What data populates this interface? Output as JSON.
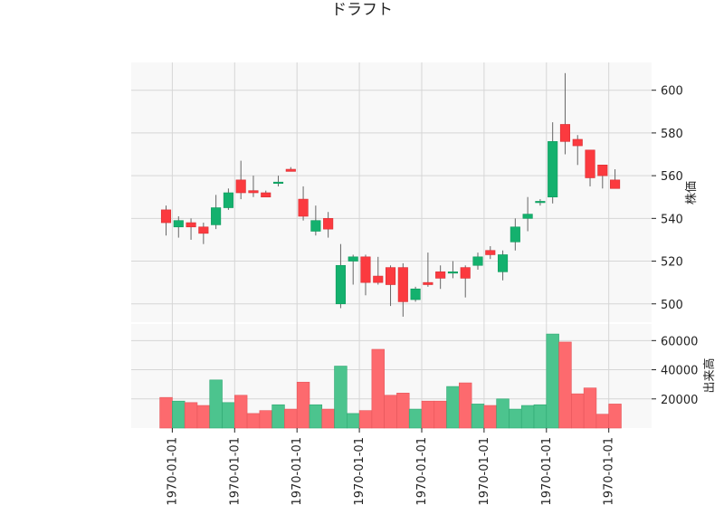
{
  "chart_data": {
    "type": "candlestick",
    "title": "ドラフト",
    "price_axis": {
      "label": "株価",
      "ticks": [
        500,
        520,
        540,
        560,
        580,
        600
      ],
      "range": [
        491,
        613
      ]
    },
    "volume_axis": {
      "label": "出来高",
      "ticks": [
        "20000",
        "40000",
        "60000"
      ],
      "tick_values": [
        20000,
        40000,
        60000
      ],
      "range": [
        0,
        72000
      ]
    },
    "x_tick_labels": [
      "1970-01-01",
      "1970-01-01",
      "1970-01-01",
      "1970-01-01",
      "1970-01-01",
      "1970-01-01",
      "1970-01-01",
      "1970-01-01"
    ],
    "x_tick_positions": [
      0.5,
      5.5,
      10.5,
      15.5,
      20.5,
      25.5,
      30.5,
      35.5
    ],
    "grid": true,
    "colors": {
      "up": "#14b16e",
      "down": "#fb3a3f",
      "up_volume": "#4cc48e",
      "down_volume": "#fd6a6e",
      "background": "#f8f8f8",
      "grid": "#d6d6d6",
      "wick": "#666666"
    },
    "candles": [
      {
        "open": 544,
        "high": 546,
        "low": 532,
        "close": 538,
        "volume": 21000
      },
      {
        "open": 536,
        "high": 541,
        "low": 531,
        "close": 539,
        "volume": 18500
      },
      {
        "open": 538,
        "high": 540,
        "low": 530,
        "close": 536,
        "volume": 17500
      },
      {
        "open": 536,
        "high": 538,
        "low": 528,
        "close": 533,
        "volume": 15500
      },
      {
        "open": 537,
        "high": 551,
        "low": 535,
        "close": 545,
        "volume": 33000
      },
      {
        "open": 545,
        "high": 554,
        "low": 544,
        "close": 552,
        "volume": 17500
      },
      {
        "open": 558,
        "high": 567,
        "low": 549,
        "close": 552,
        "volume": 22500
      },
      {
        "open": 553,
        "high": 560,
        "low": 550,
        "close": 552,
        "volume": 10000
      },
      {
        "open": 552,
        "high": 553,
        "low": 550,
        "close": 550,
        "volume": 12000
      },
      {
        "open": 557,
        "high": 560,
        "low": 555,
        "close": 557,
        "volume": 16000
      },
      {
        "open": 563,
        "high": 564,
        "low": 562,
        "close": 562,
        "volume": 13000
      },
      {
        "open": 549,
        "high": 555,
        "low": 539,
        "close": 541,
        "volume": 31500
      },
      {
        "open": 534,
        "high": 546,
        "low": 532,
        "close": 539,
        "volume": 16000
      },
      {
        "open": 540,
        "high": 543,
        "low": 531,
        "close": 535,
        "volume": 13000
      },
      {
        "open": 500,
        "high": 528,
        "low": 498,
        "close": 518,
        "volume": 42500
      },
      {
        "open": 520,
        "high": 523,
        "low": 509,
        "close": 522,
        "volume": 10000
      },
      {
        "open": 522,
        "high": 523,
        "low": 504,
        "close": 510,
        "volume": 12000
      },
      {
        "open": 513,
        "high": 522,
        "low": 509,
        "close": 510,
        "volume": 54000
      },
      {
        "open": 517,
        "high": 518,
        "low": 499,
        "close": 509,
        "volume": 22500
      },
      {
        "open": 517,
        "high": 519,
        "low": 494,
        "close": 501,
        "volume": 24000
      },
      {
        "open": 502,
        "high": 508,
        "low": 501,
        "close": 507,
        "volume": 13000
      },
      {
        "open": 510,
        "high": 524,
        "low": 508,
        "close": 509,
        "volume": 18500
      },
      {
        "open": 515,
        "high": 518,
        "low": 507,
        "close": 512,
        "volume": 18500
      },
      {
        "open": 515,
        "high": 520,
        "low": 512,
        "close": 515,
        "volume": 28500
      },
      {
        "open": 517,
        "high": 518,
        "low": 503,
        "close": 512,
        "volume": 31000
      },
      {
        "open": 518,
        "high": 524,
        "low": 516,
        "close": 522,
        "volume": 16500
      },
      {
        "open": 525,
        "high": 527,
        "low": 521,
        "close": 523,
        "volume": 15500
      },
      {
        "open": 515,
        "high": 525,
        "low": 511,
        "close": 523,
        "volume": 20000
      },
      {
        "open": 529,
        "high": 540,
        "low": 525,
        "close": 536,
        "volume": 13000
      },
      {
        "open": 540,
        "high": 550,
        "low": 534,
        "close": 542,
        "volume": 15500
      },
      {
        "open": 548,
        "high": 549,
        "low": 546,
        "close": 548,
        "volume": 16000
      },
      {
        "open": 550,
        "high": 585,
        "low": 547,
        "close": 576,
        "volume": 64500
      },
      {
        "open": 584,
        "high": 608,
        "low": 570,
        "close": 576,
        "volume": 59000
      },
      {
        "open": 577,
        "high": 579,
        "low": 565,
        "close": 574,
        "volume": 23500
      },
      {
        "open": 572,
        "high": 572,
        "low": 555,
        "close": 559,
        "volume": 27500
      },
      {
        "open": 565,
        "high": 565,
        "low": 554,
        "close": 560,
        "volume": 9500
      },
      {
        "open": 558,
        "high": 563,
        "low": 554,
        "close": 554,
        "volume": 16500
      }
    ]
  }
}
